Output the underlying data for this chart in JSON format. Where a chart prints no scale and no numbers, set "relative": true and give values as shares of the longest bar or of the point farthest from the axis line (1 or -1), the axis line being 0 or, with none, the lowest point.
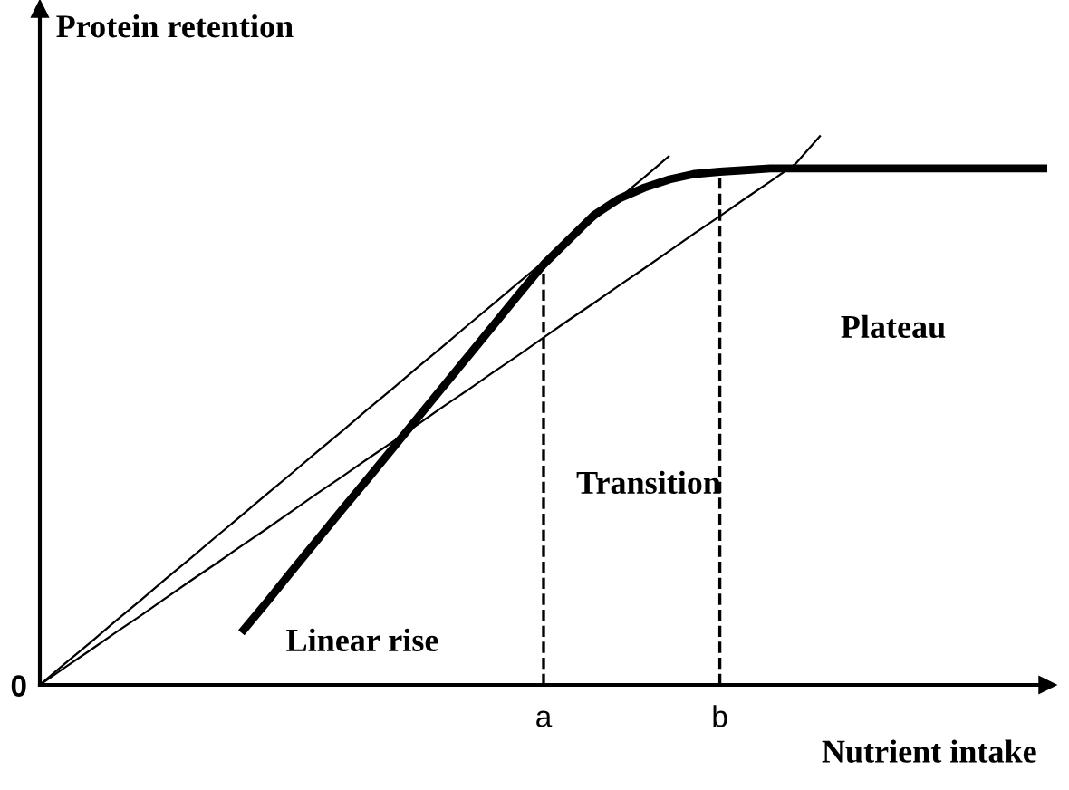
{
  "chart_data": {
    "type": "line",
    "relative": true,
    "xlabel": "Nutrient intake",
    "ylabel": "Protein retention",
    "categories": [
      null,
      null,
      null,
      null,
      null,
      null,
      null,
      null,
      null,
      null,
      null,
      null,
      null,
      null,
      null,
      null,
      null,
      null,
      null,
      null,
      "a",
      null,
      null,
      null,
      null,
      null,
      null,
      "b",
      null,
      null,
      null,
      null,
      null,
      null,
      null,
      null,
      null,
      null,
      null,
      null,
      null
    ],
    "series": [
      {
        "color": "#000000",
        "values": [
          null,
          null,
          null,
          null,
          null,
          null,
          null,
          null,
          0.095,
          0.15,
          0.207,
          0.263,
          0.319,
          0.374,
          0.43,
          0.486,
          0.542,
          0.598,
          0.654,
          0.71,
          0.765,
          0.81,
          0.855,
          0.885,
          0.905,
          0.92,
          0.93,
          0.934,
          0.937,
          0.94,
          0.94,
          0.94,
          0.94,
          0.94,
          0.94,
          0.94,
          0.94,
          0.94,
          0.94,
          0.94,
          0.94
        ]
      },
      {
        "color": "#000000",
        "values": [
          0,
          0.039,
          0.077,
          0.116,
          0.154,
          0.193,
          0.231,
          0.27,
          0.308,
          0.347,
          0.385,
          0.424,
          0.462,
          0.501,
          0.539,
          0.578,
          0.616,
          0.655,
          0.693,
          0.732,
          0.77,
          0.809,
          0.847,
          0.886,
          0.924,
          0.963,
          null,
          null,
          null,
          null,
          null,
          null,
          null,
          null,
          null,
          null,
          null,
          null,
          null,
          null,
          null
        ]
      },
      {
        "color": "#000000",
        "values": [
          0,
          0.032,
          0.063,
          0.095,
          0.126,
          0.158,
          0.19,
          0.221,
          0.253,
          0.284,
          0.316,
          0.348,
          0.379,
          0.411,
          0.442,
          0.474,
          0.506,
          0.537,
          0.569,
          0.6,
          0.632,
          0.664,
          0.695,
          0.727,
          0.758,
          0.79,
          0.822,
          0.853,
          0.885,
          0.916,
          0.948,
          1,
          null,
          null,
          null,
          null,
          null,
          null,
          null,
          null,
          null
        ]
      }
    ],
    "ref_lines": [
      {
        "axis": "x",
        "value": "a",
        "line_style": "dashed",
        "color": "#000000"
      },
      {
        "axis": "x",
        "value": "b",
        "line_style": "dashed",
        "color": "#000000"
      }
    ],
    "annotations": [
      "0",
      "Linear rise",
      "Transition",
      "Plateau"
    ],
    "grid": false,
    "legend": false,
    "marker": "none"
  }
}
